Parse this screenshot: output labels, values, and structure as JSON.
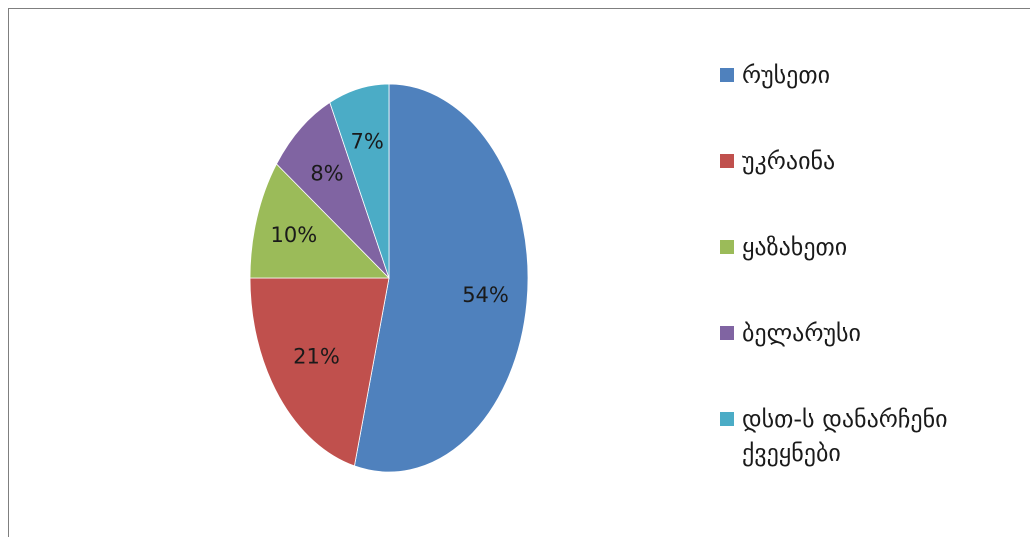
{
  "chart_data": {
    "type": "pie",
    "title": "",
    "categories": [
      "რუსეთი",
      "უკრაინა",
      "ყაზახეთი",
      "ბელარუსი",
      "დსთ-ს დანარჩენი ქვეყნები"
    ],
    "values": [
      54,
      21,
      10,
      8,
      7
    ],
    "value_labels": [
      "54%",
      "21%",
      "10%",
      "8%",
      "7%"
    ],
    "colors": [
      "#4f81bd",
      "#c0504d",
      "#9bbb59",
      "#8064a2",
      "#4bacc6"
    ],
    "start_angle_deg": 0,
    "direction": "clockwise",
    "legend_position": "right"
  }
}
